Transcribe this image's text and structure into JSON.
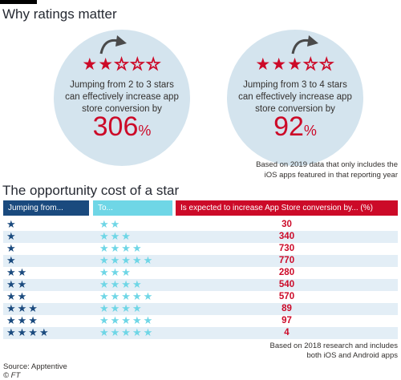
{
  "header": {
    "title": "Why ratings matter"
  },
  "panels": [
    {
      "filled": "★★",
      "empty": "☆☆☆",
      "text": "Jumping from 2 to 3 stars can effectively increase app store conversion by",
      "value": "306",
      "unit": "%"
    },
    {
      "filled": "★★★",
      "empty": "☆☆",
      "text": "Jumping from 3 to 4 stars can effectively increase app store conversion by",
      "value": "92",
      "unit": "%"
    }
  ],
  "note_top": {
    "line1": "Based on 2019 data that only includes the",
    "line2": "iOS apps featured in that reporting year"
  },
  "table": {
    "title": "The opportunity cost of a star",
    "headers": [
      "Jumping from...",
      "To...",
      "Is expected to increase App Store conversion by... (%)"
    ],
    "rows": [
      {
        "from": "★",
        "to": "★★",
        "value": "30"
      },
      {
        "from": "★",
        "to": "★★★",
        "value": "340"
      },
      {
        "from": "★",
        "to": "★★★★",
        "value": "730"
      },
      {
        "from": "★",
        "to": "★★★★★",
        "value": "770"
      },
      {
        "from": "★★",
        "to": "★★★",
        "value": "280"
      },
      {
        "from": "★★",
        "to": "★★★★",
        "value": "540"
      },
      {
        "from": "★★",
        "to": "★★★★★",
        "value": "570"
      },
      {
        "from": "★★★",
        "to": "★★★★",
        "value": "89"
      },
      {
        "from": "★★★",
        "to": "★★★★★",
        "value": "97"
      },
      {
        "from": "★★★★",
        "to": "★★★★★",
        "value": "4"
      }
    ]
  },
  "note_bottom": {
    "line1": "Based on 2018 research and includes",
    "line2": "both iOS and Android apps"
  },
  "source": {
    "line1": "Source: Apptentive",
    "line2": "© FT"
  },
  "colors": {
    "red": "#cc0a28",
    "navy": "#1a4a7e",
    "cyan": "#6fd6e6",
    "circle": "#d4e4ee"
  }
}
